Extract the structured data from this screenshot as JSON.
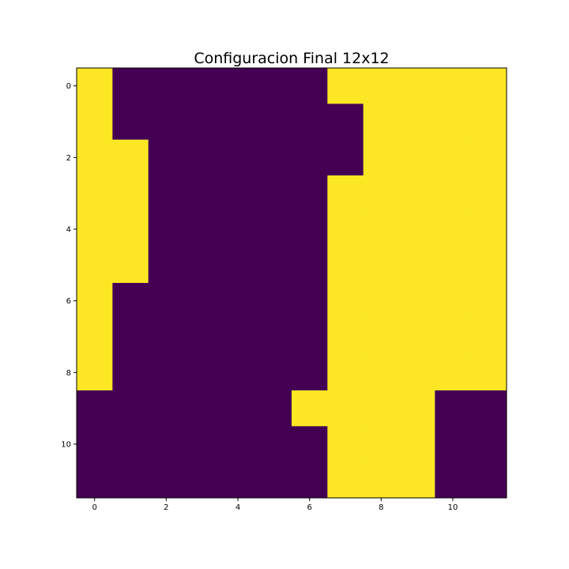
{
  "chart_data": {
    "type": "heatmap",
    "title": "Configuracion Final 12x12",
    "xlabel": "",
    "ylabel": "",
    "rows": 12,
    "cols": 12,
    "x_ticks": [
      0,
      2,
      4,
      6,
      8,
      10
    ],
    "y_ticks": [
      0,
      2,
      4,
      6,
      8,
      10
    ],
    "xlim": [
      -0.5,
      11.5
    ],
    "ylim": [
      11.5,
      -0.5
    ],
    "grid": false,
    "colormap": "viridis",
    "colors": {
      "0": "#440154",
      "1": "#fde725"
    },
    "values": [
      [
        1,
        0,
        0,
        0,
        0,
        0,
        0,
        1,
        1,
        1,
        1,
        1
      ],
      [
        1,
        0,
        0,
        0,
        0,
        0,
        0,
        0,
        1,
        1,
        1,
        1
      ],
      [
        1,
        1,
        0,
        0,
        0,
        0,
        0,
        0,
        1,
        1,
        1,
        1
      ],
      [
        1,
        1,
        0,
        0,
        0,
        0,
        0,
        1,
        1,
        1,
        1,
        1
      ],
      [
        1,
        1,
        0,
        0,
        0,
        0,
        0,
        1,
        1,
        1,
        1,
        1
      ],
      [
        1,
        1,
        0,
        0,
        0,
        0,
        0,
        1,
        1,
        1,
        1,
        1
      ],
      [
        1,
        0,
        0,
        0,
        0,
        0,
        0,
        1,
        1,
        1,
        1,
        1
      ],
      [
        1,
        0,
        0,
        0,
        0,
        0,
        0,
        1,
        1,
        1,
        1,
        1
      ],
      [
        1,
        0,
        0,
        0,
        0,
        0,
        0,
        1,
        1,
        1,
        1,
        1
      ],
      [
        0,
        0,
        0,
        0,
        0,
        0,
        1,
        1,
        1,
        1,
        0,
        0
      ],
      [
        0,
        0,
        0,
        0,
        0,
        0,
        0,
        1,
        1,
        1,
        0,
        0
      ],
      [
        0,
        0,
        0,
        0,
        0,
        0,
        0,
        1,
        1,
        1,
        0,
        0
      ]
    ]
  }
}
